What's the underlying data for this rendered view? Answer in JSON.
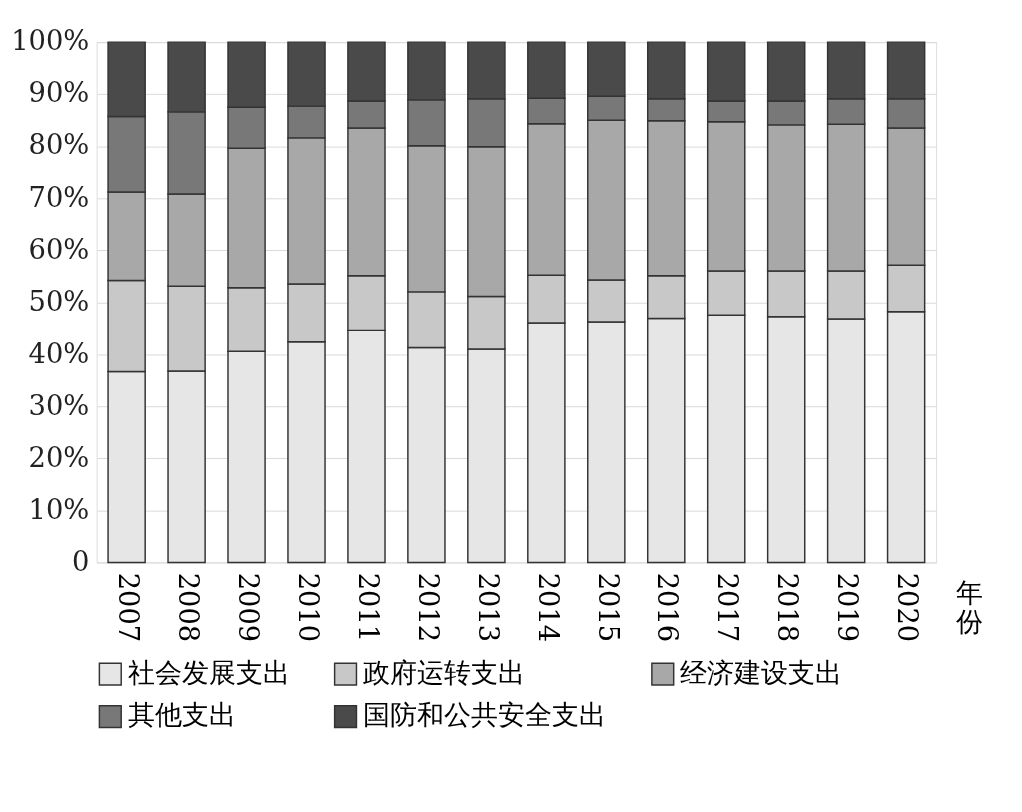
{
  "chart_data": {
    "type": "bar",
    "stacked": true,
    "xlabel": "年份",
    "categories": [
      "2007",
      "2008",
      "2009",
      "2010",
      "2011",
      "2012",
      "2013",
      "2014",
      "2015",
      "2016",
      "2017",
      "2018",
      "2019",
      "2020"
    ],
    "series": [
      {
        "name": "社会发展支出",
        "color": "#e6e6e6",
        "values": [
          36.7,
          36.8,
          40.6,
          42.4,
          44.6,
          41.3,
          41.0,
          46.0,
          46.2,
          46.9,
          47.5,
          47.2,
          46.8,
          48.2
        ]
      },
      {
        "name": "政府运转支出",
        "color": "#c8c8c8",
        "values": [
          17.5,
          16.3,
          12.2,
          11.1,
          10.5,
          10.7,
          10.1,
          9.2,
          8.1,
          8.2,
          8.5,
          8.8,
          9.2,
          8.9
        ]
      },
      {
        "name": "经济建设支出",
        "color": "#a8a8a8",
        "values": [
          17.0,
          17.7,
          26.8,
          28.1,
          28.4,
          28.1,
          28.8,
          29.1,
          30.7,
          29.8,
          28.7,
          28.1,
          28.2,
          26.4
        ]
      },
      {
        "name": "其他支出",
        "color": "#787878",
        "values": [
          14.5,
          15.8,
          7.9,
          6.1,
          5.2,
          8.8,
          9.2,
          4.9,
          4.6,
          4.2,
          4.0,
          4.6,
          4.9,
          5.6
        ]
      },
      {
        "name": "国防和公共安全支出",
        "color": "#4a4a4a",
        "values": [
          14.3,
          13.4,
          12.5,
          12.3,
          11.3,
          11.1,
          10.9,
          10.8,
          10.4,
          10.9,
          11.3,
          11.3,
          10.9,
          10.9
        ]
      }
    ],
    "ylim": [
      0,
      100
    ],
    "yticks": [
      0,
      {
        "value": 10,
        "label": "10%"
      },
      {
        "value": 20,
        "label": "20%"
      },
      {
        "value": 30,
        "label": "30%"
      },
      {
        "value": 40,
        "label": "40%"
      },
      {
        "value": 50,
        "label": "50%"
      },
      {
        "value": 60,
        "label": "60%"
      },
      {
        "value": 70,
        "label": "70%"
      },
      {
        "value": 80,
        "label": "80%"
      },
      {
        "value": 90,
        "label": "90%"
      },
      {
        "value": 100,
        "label": "100%"
      }
    ],
    "grid": "y",
    "legend": "bottom"
  }
}
